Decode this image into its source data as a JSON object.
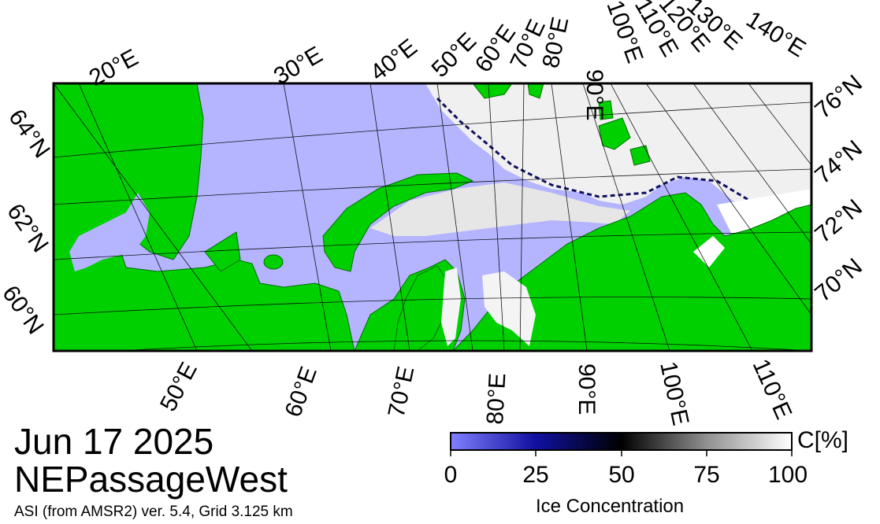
{
  "date": "Jun 17 2025",
  "region": "NEPassageWest",
  "source": "ASI (from AMSR2) ver. 5.4,  Grid 3.125 km",
  "colorbar": {
    "unit": "C[%]",
    "title": "Ice Concentration",
    "ticks": [
      "0",
      "25",
      "50",
      "75",
      "100"
    ],
    "colors": {
      "open_water": "#b4b4ff",
      "mid": "#000000",
      "full_ice": "#ffffff"
    }
  },
  "colors": {
    "land": "#00d000",
    "water": "#b4b4ff",
    "ice": "#f2f2f2"
  },
  "top_longitudes": [
    "20°E",
    "30°E",
    "40°E",
    "50°E",
    "60°E",
    "70°E",
    "80°E",
    "90°E",
    "100°E",
    "110°E",
    "120°E",
    "130°E",
    "140°E"
  ],
  "bottom_longitudes": [
    "50°E",
    "60°E",
    "70°E",
    "80°E",
    "90°E",
    "100°E",
    "110°E"
  ],
  "left_latitudes": [
    "64°N",
    "62°N",
    "60°N"
  ],
  "right_latitudes": [
    "76°N",
    "74°N",
    "72°N",
    "70°N"
  ]
}
